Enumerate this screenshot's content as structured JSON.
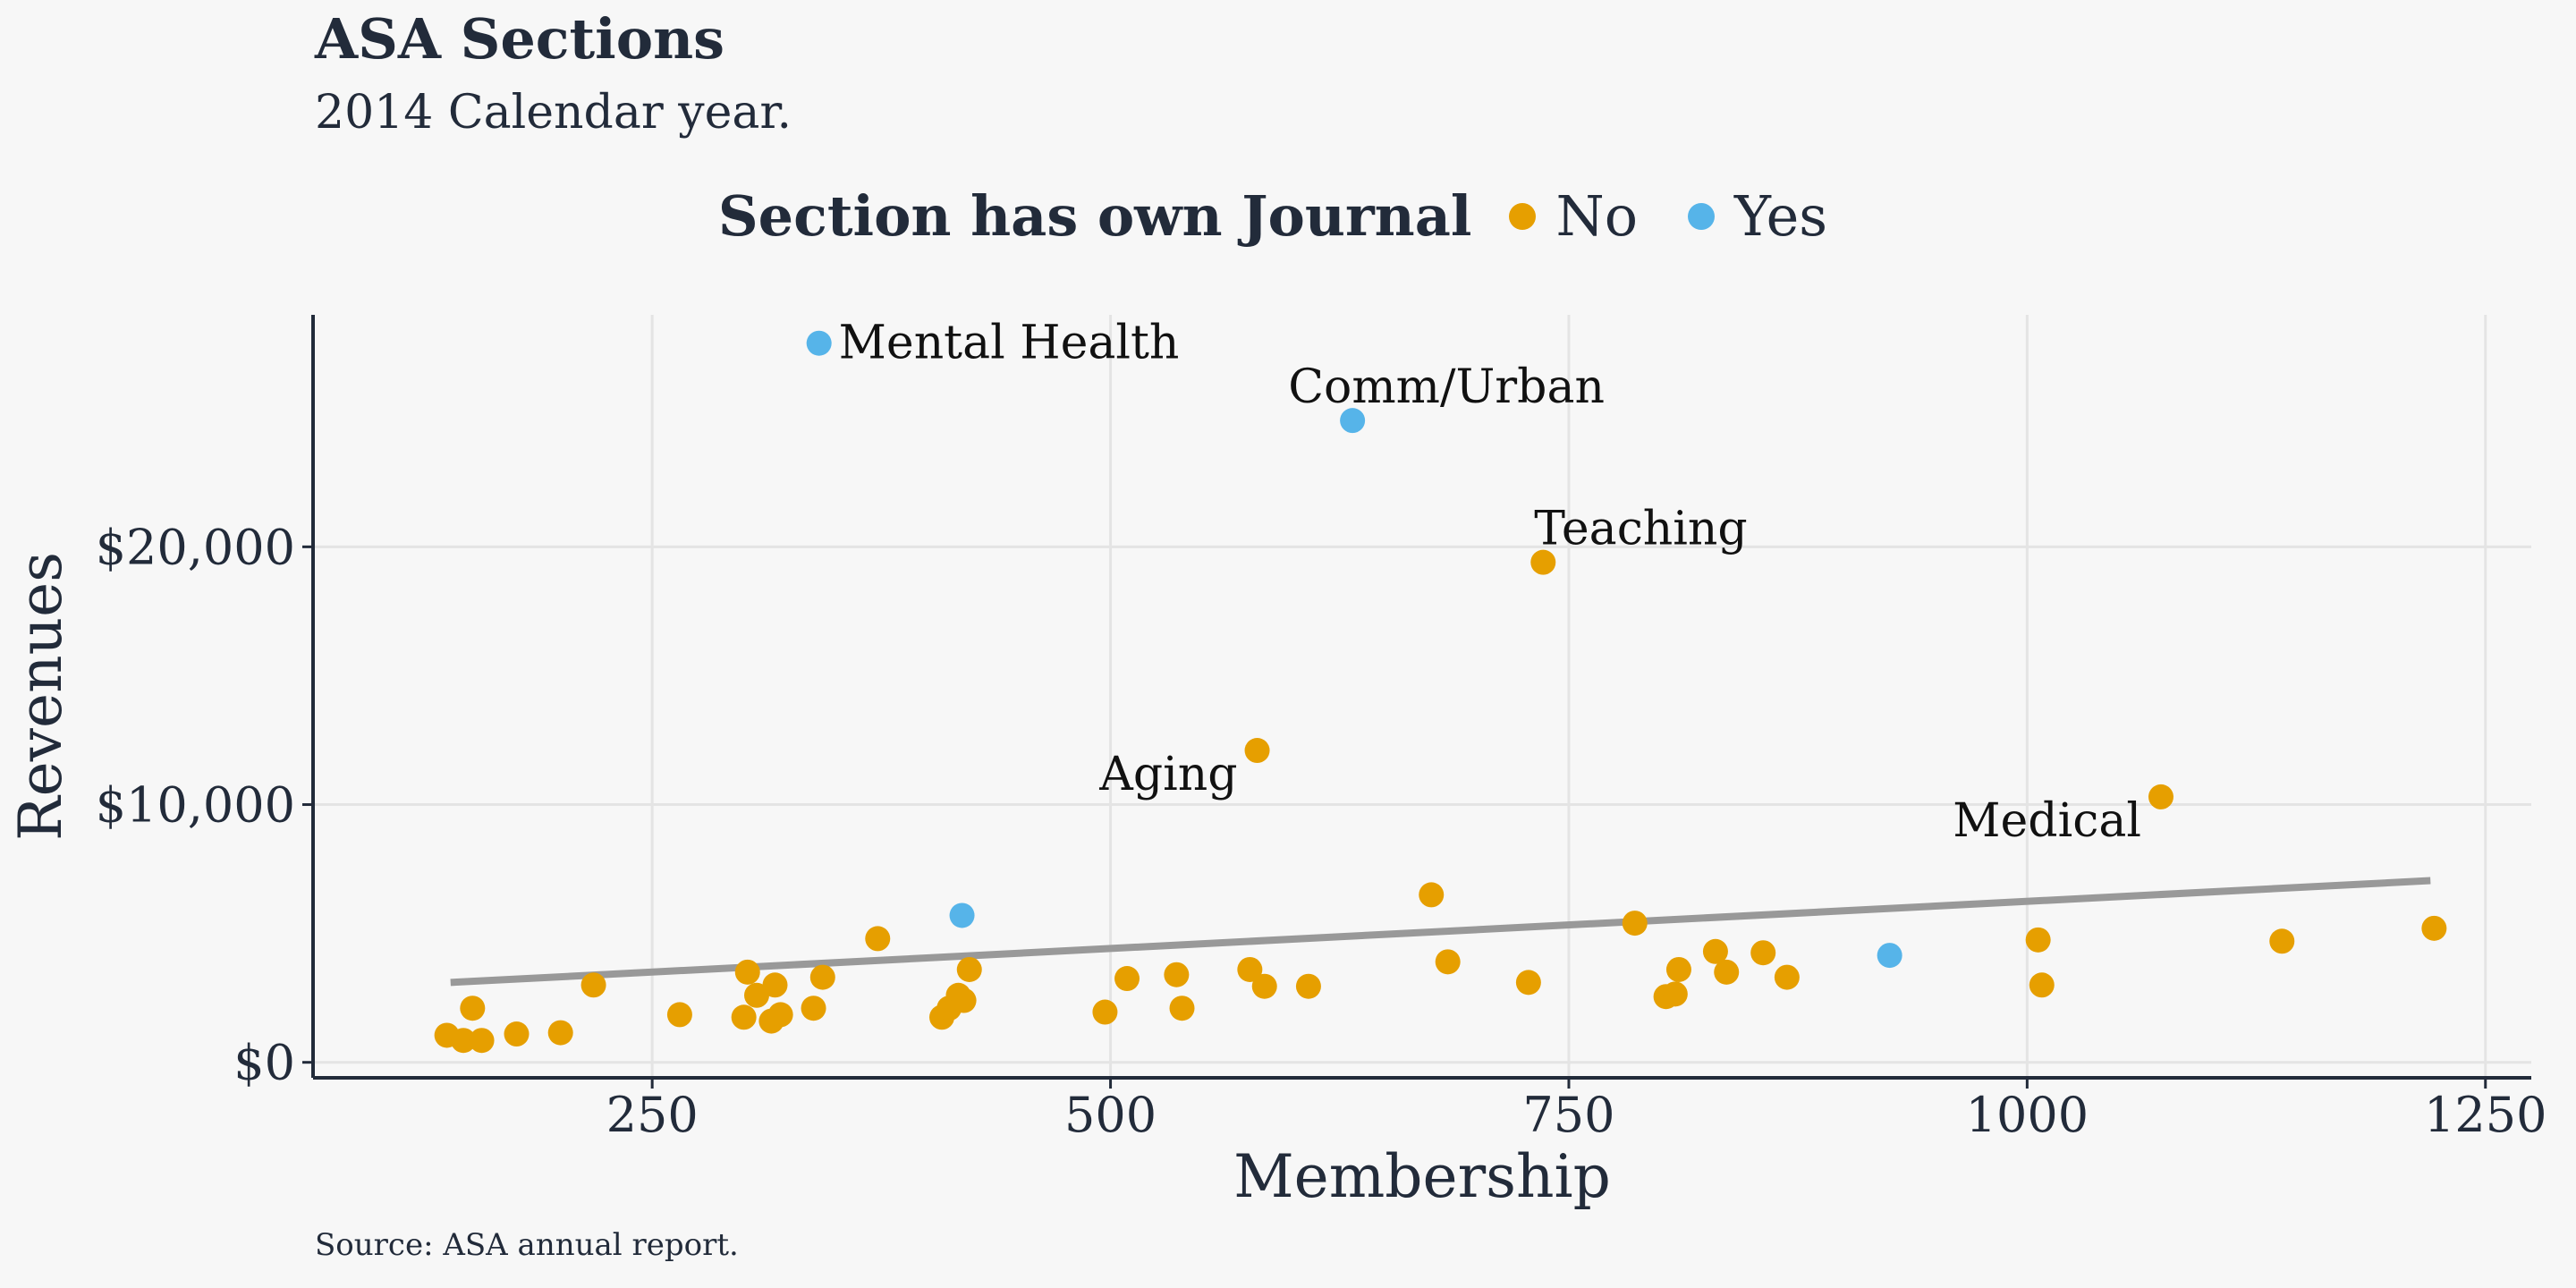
{
  "chart_data": {
    "type": "scatter",
    "title": "ASA Sections",
    "subtitle": "2014 Calendar year.",
    "caption": "Source: ASA annual report.",
    "xlabel": "Membership",
    "ylabel": "Revenues",
    "xlim": [
      65,
      1275
    ],
    "ylim": [
      -600,
      29000
    ],
    "x_ticks": [
      250,
      500,
      750,
      1000,
      1250
    ],
    "x_tick_labels": [
      "250",
      "500",
      "750",
      "1000",
      "1250"
    ],
    "y_ticks": [
      0,
      10000,
      20000
    ],
    "y_tick_labels": [
      "$0",
      "$10,000",
      "$20,000"
    ],
    "grid": true,
    "legend": {
      "title": "Section has own Journal",
      "position": "top",
      "entries": [
        {
          "label": "No",
          "color": "#E69F00"
        },
        {
          "label": "Yes",
          "color": "#56B4E9"
        }
      ]
    },
    "trend_line": {
      "color": "#999999",
      "x": [
        140,
        1220
      ],
      "y": [
        3100,
        7050
      ]
    },
    "series": [
      {
        "name": "No",
        "color": "#E69F00",
        "points": [
          {
            "x": 138,
            "y": 1050
          },
          {
            "x": 147,
            "y": 850
          },
          {
            "x": 152,
            "y": 2100
          },
          {
            "x": 157,
            "y": 850
          },
          {
            "x": 176,
            "y": 1100
          },
          {
            "x": 200,
            "y": 1150
          },
          {
            "x": 218,
            "y": 3000
          },
          {
            "x": 265,
            "y": 1850
          },
          {
            "x": 300,
            "y": 1750
          },
          {
            "x": 302,
            "y": 3500
          },
          {
            "x": 307,
            "y": 2600
          },
          {
            "x": 315,
            "y": 1600
          },
          {
            "x": 317,
            "y": 3000
          },
          {
            "x": 320,
            "y": 1850
          },
          {
            "x": 338,
            "y": 2100
          },
          {
            "x": 343,
            "y": 3300
          },
          {
            "x": 373,
            "y": 4800
          },
          {
            "x": 408,
            "y": 1750
          },
          {
            "x": 412,
            "y": 2100
          },
          {
            "x": 417,
            "y": 2600
          },
          {
            "x": 420,
            "y": 2400
          },
          {
            "x": 423,
            "y": 3600
          },
          {
            "x": 497,
            "y": 1950
          },
          {
            "x": 509,
            "y": 3250
          },
          {
            "x": 536,
            "y": 3400
          },
          {
            "x": 539,
            "y": 2100
          },
          {
            "x": 576,
            "y": 3600
          },
          {
            "x": 580,
            "y": 12100
          },
          {
            "x": 584,
            "y": 2950
          },
          {
            "x": 608,
            "y": 2950
          },
          {
            "x": 675,
            "y": 6500
          },
          {
            "x": 684,
            "y": 3900
          },
          {
            "x": 728,
            "y": 3100
          },
          {
            "x": 736,
            "y": 19400
          },
          {
            "x": 786,
            "y": 5400
          },
          {
            "x": 803,
            "y": 2550
          },
          {
            "x": 808,
            "y": 2650
          },
          {
            "x": 810,
            "y": 3600
          },
          {
            "x": 830,
            "y": 4300
          },
          {
            "x": 836,
            "y": 3500
          },
          {
            "x": 856,
            "y": 4250
          },
          {
            "x": 869,
            "y": 3300
          },
          {
            "x": 1006,
            "y": 4750
          },
          {
            "x": 1008,
            "y": 3000
          },
          {
            "x": 1073,
            "y": 10300
          },
          {
            "x": 1139,
            "y": 4700
          },
          {
            "x": 1222,
            "y": 5200
          }
        ]
      },
      {
        "name": "Yes",
        "color": "#56B4E9",
        "points": [
          {
            "x": 341,
            "y": 27900
          },
          {
            "x": 419,
            "y": 5700
          },
          {
            "x": 632,
            "y": 24900
          },
          {
            "x": 925,
            "y": 4150
          }
        ]
      }
    ],
    "annotations": [
      {
        "text": "Mental Health",
        "x": 341,
        "y": 27900,
        "anchor": "start"
      },
      {
        "text": "Comm/Urban",
        "x": 632,
        "y": 24900,
        "anchor": "middle-above"
      },
      {
        "text": "Teaching",
        "x": 736,
        "y": 19400,
        "anchor": "start-above"
      },
      {
        "text": "Aging",
        "x": 580,
        "y": 12100,
        "anchor": "end-below"
      },
      {
        "text": "Medical",
        "x": 1073,
        "y": 10300,
        "anchor": "end-below"
      }
    ]
  }
}
